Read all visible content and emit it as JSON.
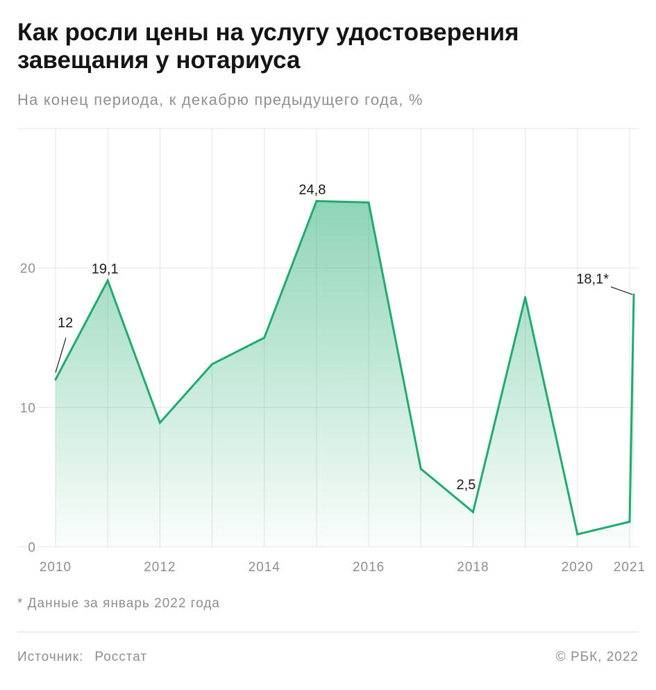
{
  "chart_data": {
    "type": "area",
    "title": "Как росли цены на услугу удостоверения завещания у нотариуса",
    "subtitle": "На конец периода, к декабрю предыдущего года, %",
    "x": [
      2010,
      2011,
      2012,
      2013,
      2014,
      2015,
      2016,
      2017,
      2018,
      2019,
      2020,
      2021,
      2021.08
    ],
    "series": [
      {
        "values": [
          12,
          19.1,
          8.9,
          13.1,
          15.0,
          24.8,
          24.7,
          5.6,
          2.5,
          17.9,
          0.9,
          1.8,
          18.1
        ],
        "color": "#1faa6e"
      }
    ],
    "xlim": [
      2010,
      2021.08
    ],
    "ylim": [
      0,
      30
    ],
    "x_tick_labels": [
      "2010",
      "2012",
      "2014",
      "2016",
      "2018",
      "2020",
      "2021"
    ],
    "y_tick_labels": [
      "0",
      "10",
      "20"
    ],
    "data_labels": [
      {
        "x": 2010,
        "text": "12"
      },
      {
        "x": 2011,
        "text": "19,1"
      },
      {
        "x": 2015,
        "text": "24,8"
      },
      {
        "x": 2018,
        "text": "2,5"
      },
      {
        "x": 2021.08,
        "text": "18,1*"
      }
    ],
    "grid": true,
    "footnote": "* Данные за январь 2022 года"
  },
  "footer": {
    "source_label": "Источник:",
    "source_value": "Росстат",
    "copyright": "© РБК, 2022"
  }
}
